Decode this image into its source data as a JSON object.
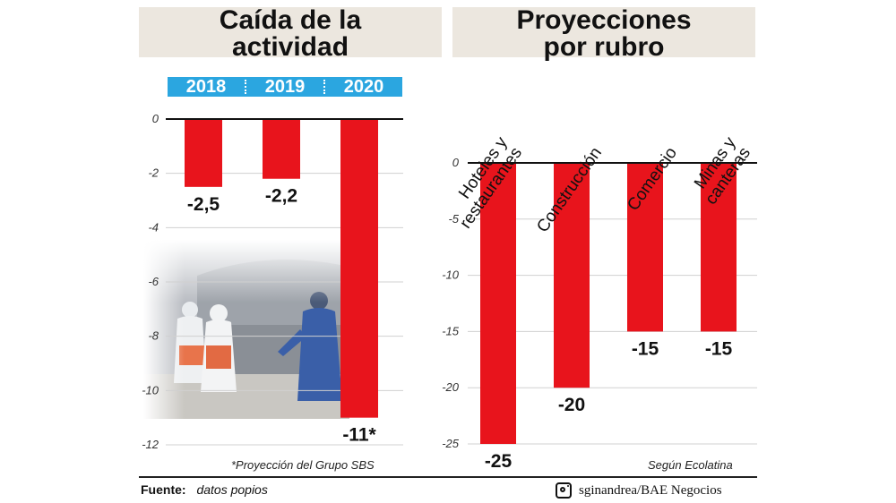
{
  "left_panel": {
    "title_lines": [
      "Caída de la",
      "actividad"
    ],
    "years": [
      "2018",
      "2019",
      "2020"
    ],
    "note": "*Proyección del Grupo SBS"
  },
  "right_panel": {
    "title_lines": [
      "Proyecciones",
      "por rubro"
    ],
    "note": "Según Ecolatina"
  },
  "footer": {
    "source_label": "Fuente:",
    "source_value": "datos popios",
    "credit": "sginandrea/BAE Negocios",
    "credit_icon": "instagram-icon"
  },
  "colors": {
    "bar": "#e8141c",
    "year_bar": "#2ba6e0",
    "grid": "#d0d0d0",
    "title_bg": "#ece7df"
  },
  "chart_data": [
    {
      "type": "bar",
      "title": "Caída de la actividad",
      "categories": [
        "2018",
        "2019",
        "2020"
      ],
      "values": [
        -2.5,
        -2.2,
        -11
      ],
      "value_labels": [
        "-2,5",
        "-2,2",
        "-11*"
      ],
      "ylim": [
        -12,
        0
      ],
      "yticks": [
        0,
        -2,
        -4,
        -6,
        -8,
        -10,
        -12
      ],
      "ytick_labels": [
        "0",
        "-2",
        "-4",
        "-6",
        "-8",
        "-10",
        "-12"
      ],
      "grid": true
    },
    {
      "type": "bar",
      "title": "Proyecciones por rubro",
      "categories": [
        [
          "Hoteles y",
          "restaurantes"
        ],
        [
          "Construcción"
        ],
        [
          "Comercio"
        ],
        [
          "Minas y",
          "canteras"
        ]
      ],
      "values": [
        -25,
        -20,
        -15,
        -15
      ],
      "value_labels": [
        "-25",
        "-20",
        "-15",
        "-15"
      ],
      "ylim": [
        -25,
        0
      ],
      "yticks": [
        0,
        -5,
        -10,
        -15,
        -20,
        -25
      ],
      "ytick_labels": [
        "0",
        "-5",
        "-10",
        "-15",
        "-20",
        "-25"
      ],
      "grid": true
    }
  ]
}
